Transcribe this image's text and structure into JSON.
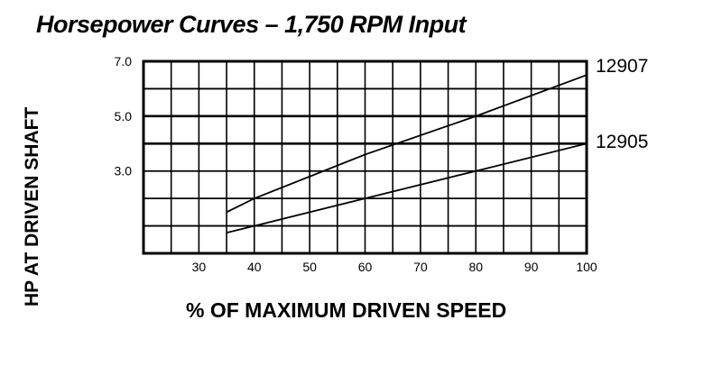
{
  "chart_data": {
    "type": "line",
    "title": "Horsepower Curves – 1,750 RPM Input",
    "xlabel": "% OF MAXIMUM DRIVEN SPEED",
    "ylabel": "HP AT DRIVEN SHAFT",
    "xlim": [
      20,
      100
    ],
    "ylim": [
      0,
      7
    ],
    "x_ticks": [
      30,
      40,
      50,
      60,
      70,
      80,
      90,
      100
    ],
    "y_ticks": [
      "7.0",
      "5.0",
      "3.0"
    ],
    "grid": true,
    "grid_x_step": 5,
    "grid_y_step": 1,
    "legend_position": "right (inline labels at line ends)",
    "series": [
      {
        "name": "12907",
        "x": [
          35,
          40,
          60,
          80,
          100
        ],
        "y": [
          1.5,
          2.0,
          3.6,
          5.0,
          6.5
        ]
      },
      {
        "name": "12905",
        "x": [
          35,
          40,
          60,
          80,
          100
        ],
        "y": [
          0.75,
          1.0,
          2.0,
          3.0,
          4.0
        ]
      }
    ]
  },
  "labels": {
    "title": "Horsepower Curves – 1,750 RPM Input",
    "xlabel": "% OF MAXIMUM DRIVEN SPEED",
    "ylabel": "HP AT DRIVEN SHAFT"
  },
  "colors": {
    "line": "#000000",
    "background": "#ffffff"
  }
}
